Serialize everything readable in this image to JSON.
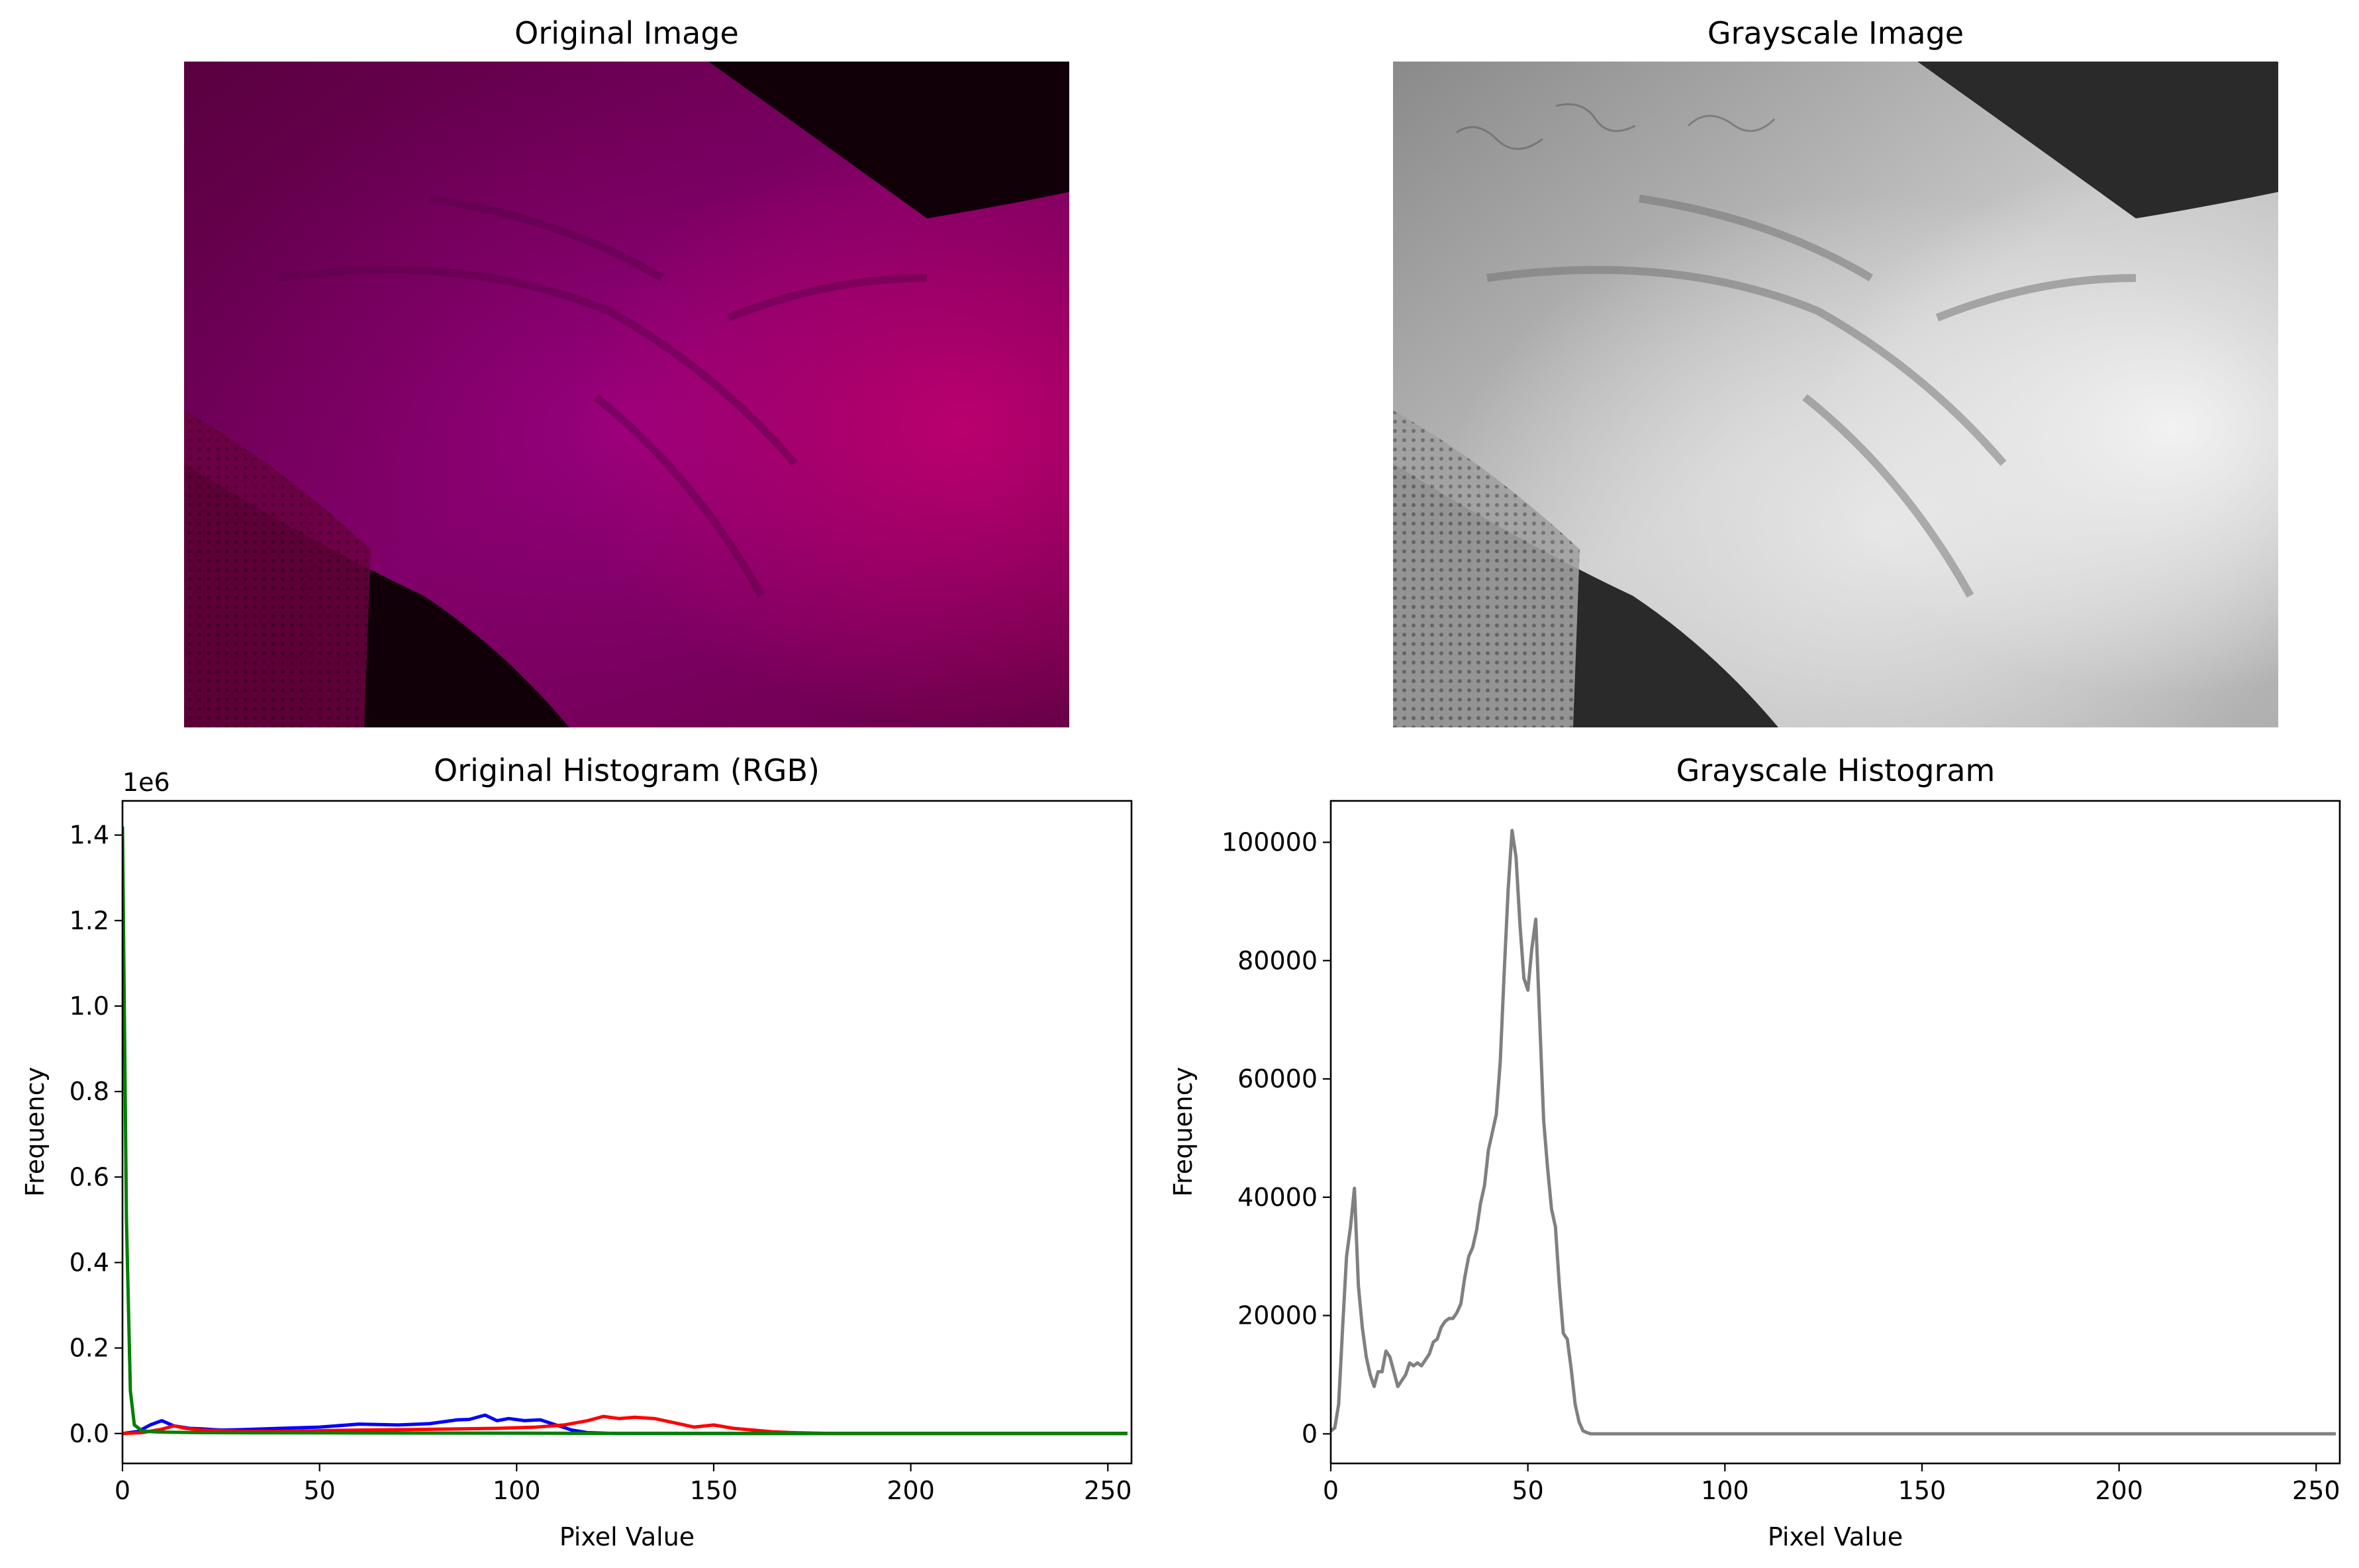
{
  "panels": {
    "original_image": {
      "title": "Original Image"
    },
    "grayscale_image": {
      "title": "Grayscale Image"
    }
  },
  "chart_data": [
    {
      "type": "line",
      "title": "Original Histogram (RGB)",
      "xlabel": "Pixel Value",
      "ylabel": "Frequency",
      "offset_label": "1e6",
      "xlim": [
        0,
        256
      ],
      "ylim": [
        -0.07,
        1.48
      ],
      "xticks": [
        0,
        50,
        100,
        150,
        200,
        250
      ],
      "xtick_labels": [
        "0",
        "50",
        "100",
        "150",
        "200",
        "250"
      ],
      "yticks": [
        0.0,
        0.2,
        0.4,
        0.6,
        0.8,
        1.0,
        1.2,
        1.4
      ],
      "ytick_labels": [
        "0.0",
        "0.2",
        "0.4",
        "0.6",
        "0.8",
        "1.0",
        "1.2",
        "1.4"
      ],
      "grid": false,
      "series": [
        {
          "color": "#0000ff",
          "x": [
            0,
            4,
            7,
            10,
            13,
            17,
            20,
            25,
            30,
            40,
            50,
            60,
            70,
            78,
            85,
            88,
            92,
            95,
            98,
            102,
            106,
            110,
            114,
            118,
            125,
            255
          ],
          "y": [
            0.0,
            0.005,
            0.02,
            0.03,
            0.018,
            0.012,
            0.011,
            0.008,
            0.009,
            0.012,
            0.015,
            0.022,
            0.02,
            0.023,
            0.032,
            0.033,
            0.043,
            0.03,
            0.035,
            0.03,
            0.032,
            0.02,
            0.008,
            0.002,
            0.0,
            0.0
          ]
        },
        {
          "color": "#ff0000",
          "x": [
            0,
            5,
            10,
            13,
            16,
            20,
            30,
            40,
            60,
            80,
            95,
            105,
            112,
            118,
            122,
            126,
            130,
            135,
            140,
            145,
            150,
            155,
            160,
            165,
            170,
            180,
            255
          ],
          "y": [
            0.0,
            0.002,
            0.01,
            0.018,
            0.012,
            0.008,
            0.005,
            0.005,
            0.008,
            0.01,
            0.012,
            0.015,
            0.02,
            0.03,
            0.04,
            0.035,
            0.038,
            0.035,
            0.025,
            0.015,
            0.02,
            0.012,
            0.008,
            0.004,
            0.002,
            0.0,
            0.0
          ]
        },
        {
          "color": "#008000",
          "x": [
            0,
            1,
            2,
            3,
            5,
            8,
            12,
            20,
            40,
            80,
            120,
            160,
            255
          ],
          "y": [
            1.42,
            0.5,
            0.1,
            0.02,
            0.006,
            0.004,
            0.003,
            0.002,
            0.0015,
            0.001,
            0.0005,
            0.0,
            0.0
          ]
        }
      ]
    },
    {
      "type": "line",
      "title": "Grayscale Histogram",
      "xlabel": "Pixel Value",
      "ylabel": "Frequency",
      "xlim": [
        0,
        256
      ],
      "ylim": [
        -5000,
        107000
      ],
      "xticks": [
        0,
        50,
        100,
        150,
        200,
        250
      ],
      "xtick_labels": [
        "0",
        "50",
        "100",
        "150",
        "200",
        "250"
      ],
      "yticks": [
        0,
        20000,
        40000,
        60000,
        80000,
        100000
      ],
      "ytick_labels": [
        "0",
        "20000",
        "40000",
        "60000",
        "80000",
        "100000"
      ],
      "grid": false,
      "series": [
        {
          "color": "#808080",
          "x": [
            0,
            1,
            2,
            3,
            4,
            5,
            6,
            7,
            8,
            9,
            10,
            11,
            12,
            13,
            14,
            15,
            16,
            17,
            18,
            19,
            20,
            21,
            22,
            23,
            24,
            25,
            26,
            27,
            28,
            29,
            30,
            31,
            32,
            33,
            34,
            35,
            36,
            37,
            38,
            39,
            40,
            41,
            42,
            43,
            44,
            45,
            46,
            47,
            48,
            49,
            50,
            51,
            52,
            53,
            54,
            55,
            56,
            57,
            58,
            59,
            60,
            61,
            62,
            63,
            64,
            65,
            66,
            67,
            70,
            100,
            150,
            200,
            255
          ],
          "y": [
            500,
            1000,
            5000,
            18000,
            30000,
            35000,
            41500,
            25000,
            18000,
            13000,
            10000,
            8000,
            10500,
            10500,
            14000,
            13000,
            10500,
            8000,
            9000,
            10000,
            12000,
            11500,
            12000,
            11500,
            12500,
            13500,
            15500,
            16000,
            18000,
            19000,
            19500,
            19500,
            20500,
            22000,
            26500,
            30000,
            31500,
            34500,
            39000,
            42000,
            48000,
            51000,
            54000,
            63000,
            78000,
            92000,
            102000,
            97500,
            86000,
            77000,
            75000,
            82000,
            87000,
            70000,
            53000,
            45000,
            38000,
            35000,
            25000,
            17000,
            16000,
            11000,
            5000,
            2000,
            500,
            200,
            0,
            0,
            0,
            0,
            0,
            0,
            0
          ]
        }
      ]
    }
  ]
}
